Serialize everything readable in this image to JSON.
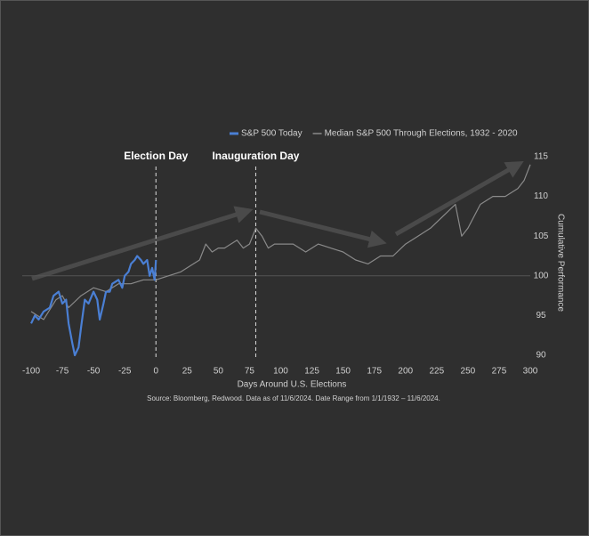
{
  "chart_data": {
    "type": "line",
    "title_annotations": [
      {
        "label": "Election Day",
        "x": 0
      },
      {
        "label": "Inauguration Day",
        "x": 80
      }
    ],
    "xlabel": "Days Around U.S. Elections",
    "ylabel": "Cumulative Performance",
    "source": "Source: Bloomberg, Redwood. Data as of 11/6/2024. Date Range from 1/1/1932 – 11/6/2024.",
    "reference_line": 100,
    "xlim": [
      -100,
      300
    ],
    "xticks": [
      -100,
      -75,
      -50,
      -25,
      0,
      25,
      50,
      75,
      100,
      125,
      150,
      175,
      200,
      225,
      250,
      275,
      300
    ],
    "ylim": [
      90,
      115
    ],
    "yticks": [
      90,
      95,
      100,
      105,
      110,
      115
    ],
    "series": [
      {
        "name": "S&P 500 Today",
        "color": "#4a7fd4",
        "x": [
          -100,
          -97,
          -94,
          -90,
          -85,
          -82,
          -78,
          -75,
          -72,
          -70,
          -67,
          -65,
          -62,
          -60,
          -57,
          -54,
          -50,
          -47,
          -45,
          -42,
          -40,
          -37,
          -35,
          -30,
          -27,
          -25,
          -22,
          -20,
          -17,
          -15,
          -12,
          -10,
          -7,
          -5,
          -3,
          -1,
          0
        ],
        "values": [
          94,
          95,
          94.5,
          95.5,
          96,
          97.5,
          98,
          96.5,
          97,
          94,
          91.5,
          90,
          91,
          93.5,
          97,
          96.5,
          98,
          97,
          94.5,
          96.5,
          98,
          98,
          99,
          99.5,
          98.5,
          100,
          100.5,
          101.5,
          102,
          102.5,
          102,
          101.5,
          102,
          100,
          101,
          99.5,
          102
        ]
      },
      {
        "name": "Median S&P 500 Through Elections, 1932 - 2020",
        "color": "#8a8a8a",
        "x": [
          -100,
          -90,
          -80,
          -75,
          -70,
          -60,
          -50,
          -40,
          -30,
          -20,
          -10,
          0,
          10,
          20,
          30,
          35,
          40,
          45,
          50,
          55,
          60,
          65,
          70,
          75,
          80,
          85,
          90,
          95,
          100,
          110,
          120,
          130,
          140,
          150,
          160,
          170,
          180,
          190,
          200,
          210,
          220,
          230,
          240,
          245,
          250,
          260,
          270,
          280,
          290,
          295,
          300
        ],
        "values": [
          95.5,
          94.5,
          97,
          97.5,
          96,
          97.5,
          98.5,
          98,
          99,
          99,
          99.5,
          99.5,
          100,
          100.5,
          101.5,
          102,
          104,
          103,
          103.5,
          103.5,
          104,
          104.5,
          103.5,
          104,
          106,
          105,
          103.5,
          104,
          104,
          104,
          103,
          104,
          103.5,
          103,
          102,
          101.5,
          102.5,
          102.5,
          104,
          105,
          106,
          107.5,
          109,
          105,
          106,
          109,
          110,
          110,
          111,
          112,
          114
        ]
      }
    ]
  }
}
